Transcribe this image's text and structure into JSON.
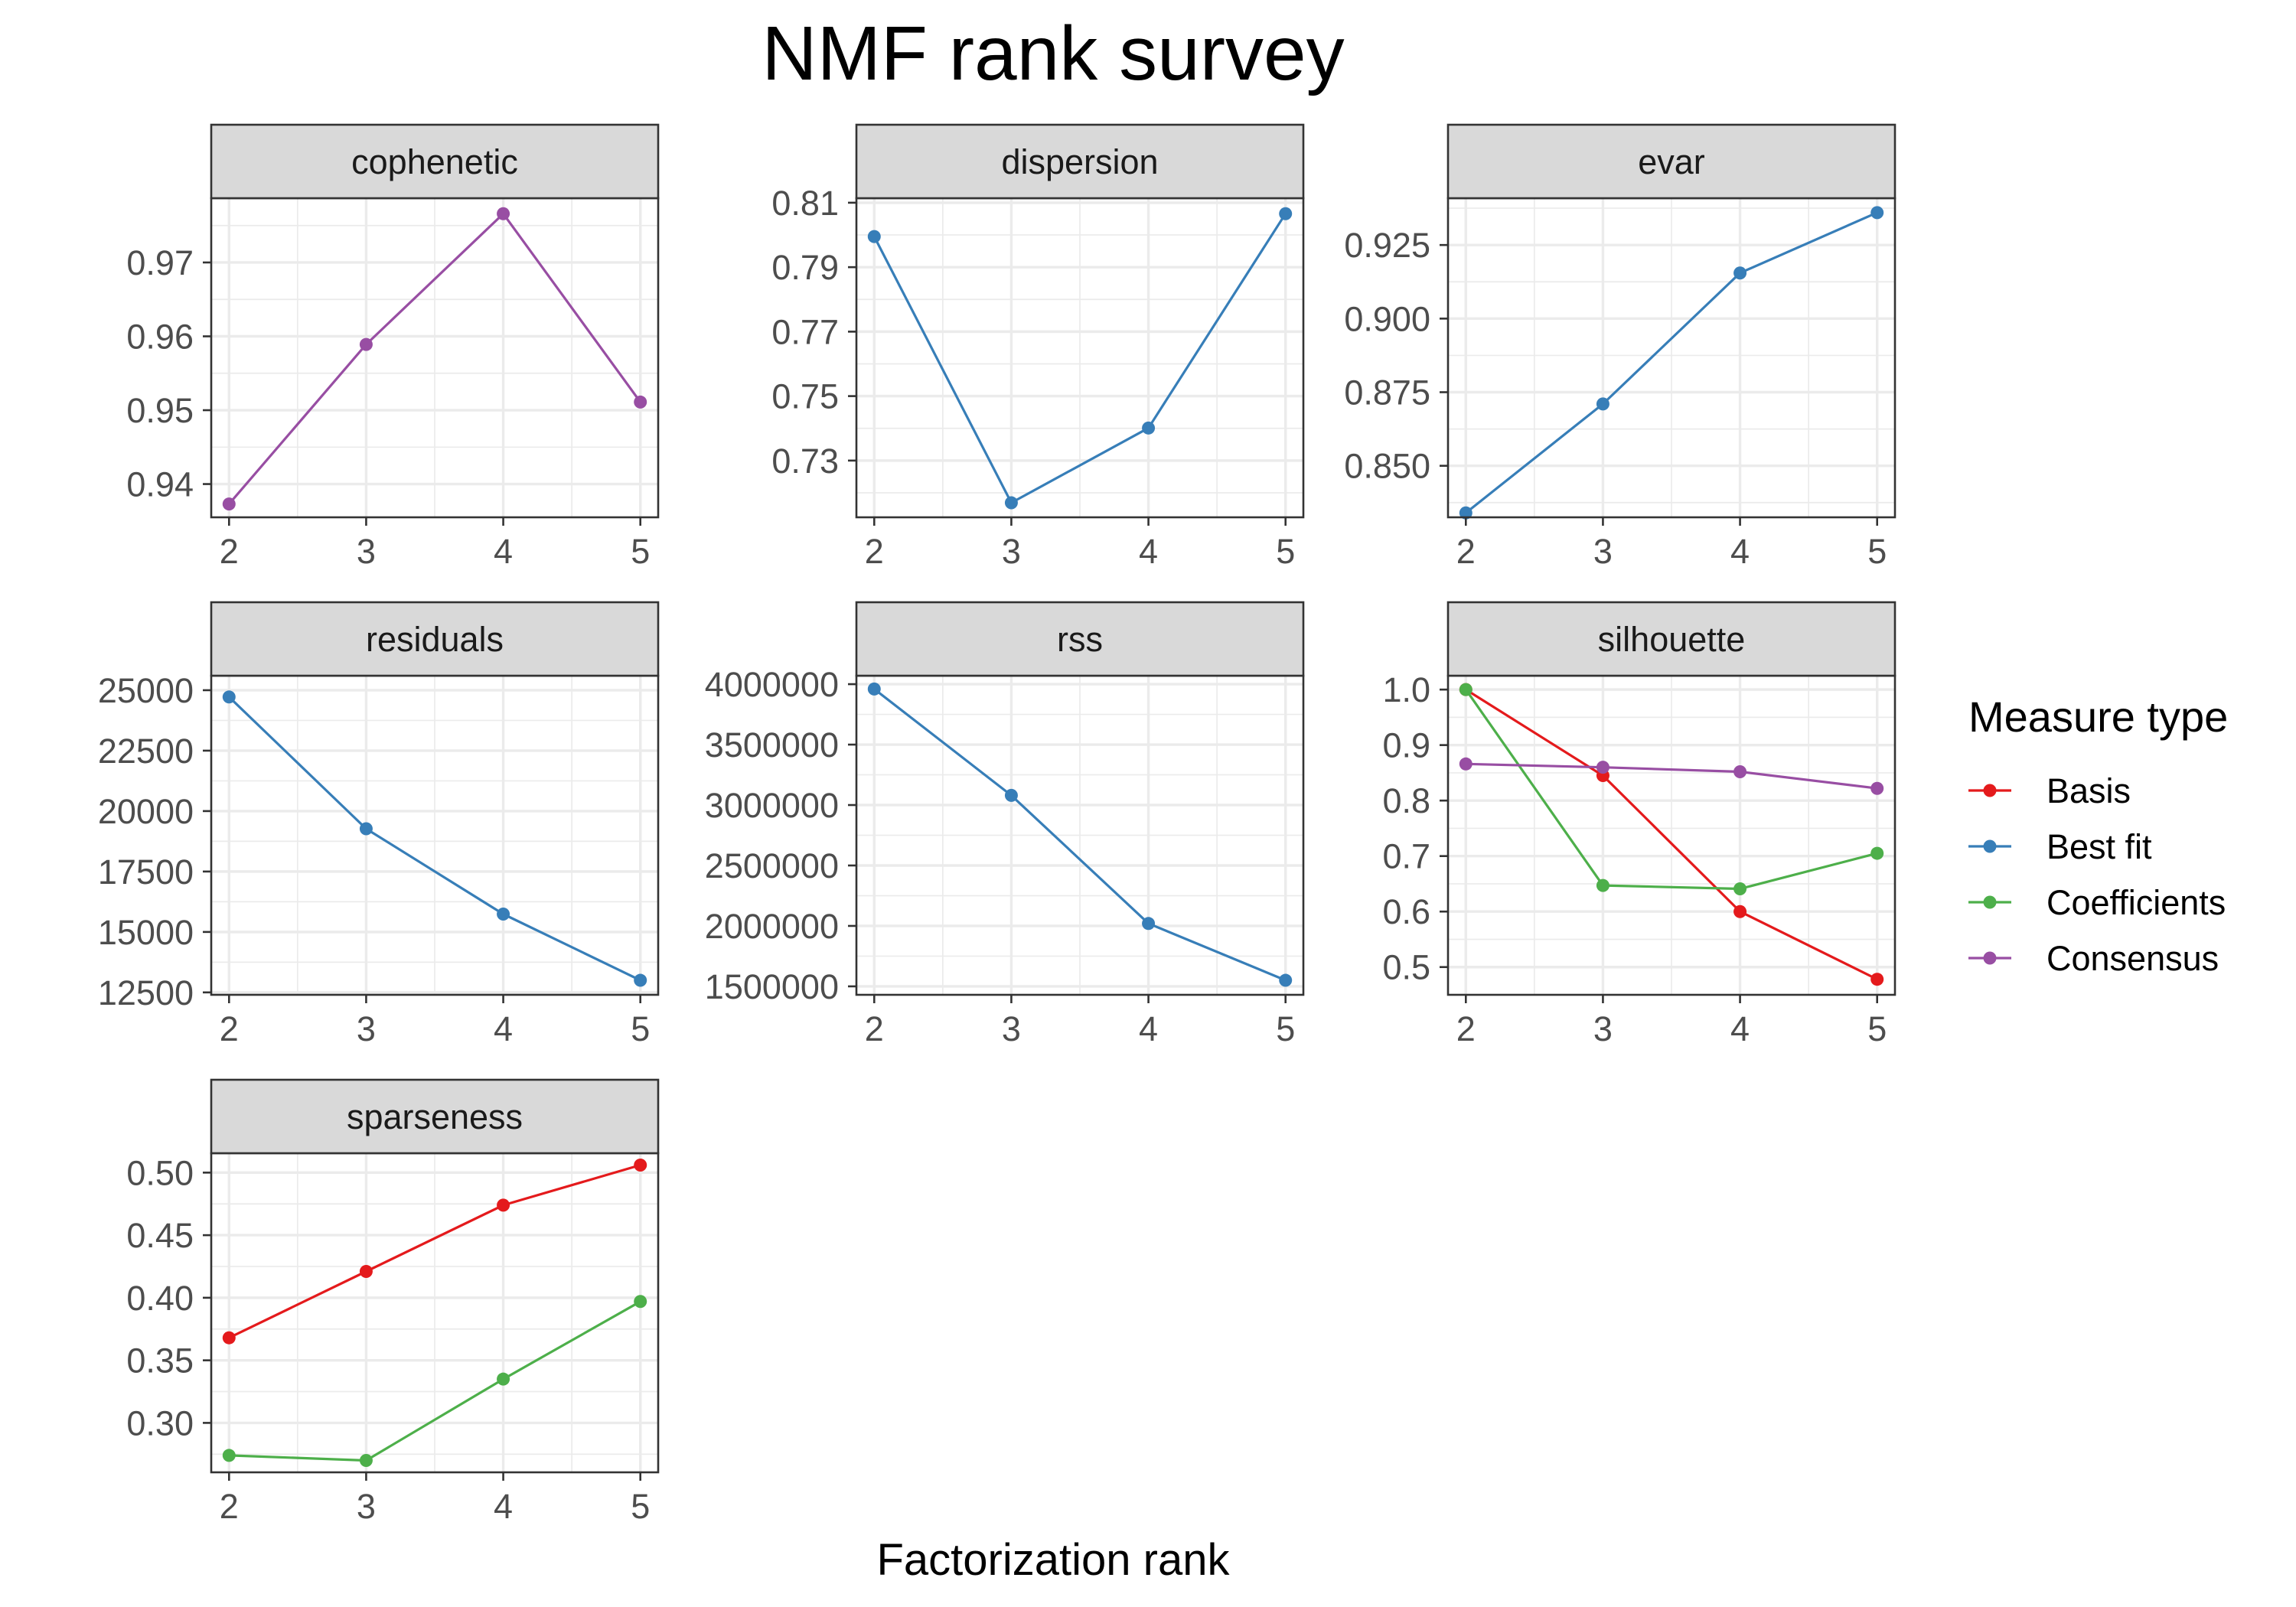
{
  "title": "NMF rank survey",
  "xlabel": "Factorization rank",
  "legend": {
    "title": "Measure type",
    "items": [
      {
        "label": "Basis",
        "color": "#e41a1c"
      },
      {
        "label": "Best fit",
        "color": "#377eb8"
      },
      {
        "label": "Coefficients",
        "color": "#4daf4a"
      },
      {
        "label": "Consensus",
        "color": "#984ea3"
      }
    ]
  },
  "chart_data": {
    "type": "line",
    "x": [
      2,
      3,
      4,
      5
    ],
    "xlim": [
      1.87,
      5.13
    ],
    "x_ticks": [
      "2",
      "3",
      "4",
      "5"
    ],
    "grid": true,
    "legend_position": "right",
    "panels": [
      {
        "name": "cophenetic",
        "ylim": [
          0.9355,
          0.9787
        ],
        "y_ticks": [
          0.94,
          0.95,
          0.96,
          0.97
        ],
        "y_tick_labels": [
          "0.94",
          "0.95",
          "0.96",
          "0.97"
        ],
        "series": [
          {
            "name": "Consensus",
            "color": "#984ea3",
            "values": [
              0.9373,
              0.9589,
              0.9766,
              0.9511
            ]
          }
        ]
      },
      {
        "name": "dispersion",
        "ylim": [
          0.7124,
          0.8114
        ],
        "y_ticks": [
          0.73,
          0.75,
          0.77,
          0.79,
          0.81
        ],
        "y_tick_labels": [
          "0.73",
          "0.75",
          "0.77",
          "0.79",
          "0.81"
        ],
        "series": [
          {
            "name": "Best fit",
            "color": "#377eb8",
            "values": [
              0.7995,
              0.7169,
              0.7401,
              0.8066
            ]
          }
        ]
      },
      {
        "name": "evar",
        "ylim": [
          0.8325,
          0.9409
        ],
        "y_ticks": [
          0.85,
          0.875,
          0.9,
          0.925
        ],
        "y_tick_labels": [
          "0.850",
          "0.875",
          "0.900",
          "0.925"
        ],
        "series": [
          {
            "name": "Best fit",
            "color": "#377eb8",
            "values": [
              0.834,
              0.871,
              0.9155,
              0.936
            ]
          }
        ]
      },
      {
        "name": "residuals",
        "ylim": [
          12400,
          25600
        ],
        "y_ticks": [
          12500,
          15000,
          17500,
          20000,
          22500,
          25000
        ],
        "y_tick_labels": [
          "12500",
          "15000",
          "17500",
          "20000",
          "22500",
          "25000"
        ],
        "series": [
          {
            "name": "Best fit",
            "color": "#377eb8",
            "values": [
              24720,
              19270,
              15740,
              13000
            ]
          }
        ]
      },
      {
        "name": "rss",
        "ylim": [
          1430000,
          4070000
        ],
        "y_ticks": [
          1500000,
          2000000,
          2500000,
          3000000,
          3500000,
          4000000
        ],
        "y_tick_labels": [
          "1500000",
          "2000000",
          "2500000",
          "3000000",
          "3500000",
          "4000000"
        ],
        "series": [
          {
            "name": "Best fit",
            "color": "#377eb8",
            "values": [
              3960000,
              3080000,
              2020000,
              1550000
            ]
          }
        ]
      },
      {
        "name": "silhouette",
        "ylim": [
          0.45,
          1.025
        ],
        "y_ticks": [
          0.5,
          0.6,
          0.7,
          0.8,
          0.9,
          1.0
        ],
        "y_tick_labels": [
          "0.5",
          "0.6",
          "0.7",
          "0.8",
          "0.9",
          "1.0"
        ],
        "series": [
          {
            "name": "Basis",
            "color": "#e41a1c",
            "values": [
              1.0,
              0.845,
              0.6,
              0.478
            ]
          },
          {
            "name": "Coefficients",
            "color": "#4daf4a",
            "values": [
              1.0,
              0.647,
              0.641,
              0.705
            ]
          },
          {
            "name": "Consensus",
            "color": "#984ea3",
            "values": [
              0.866,
              0.86,
              0.852,
              0.822
            ]
          }
        ]
      },
      {
        "name": "sparseness",
        "ylim": [
          0.2605,
          0.5155
        ],
        "y_ticks": [
          0.3,
          0.35,
          0.4,
          0.45,
          0.5
        ],
        "y_tick_labels": [
          "0.30",
          "0.35",
          "0.40",
          "0.45",
          "0.50"
        ],
        "series": [
          {
            "name": "Basis",
            "color": "#e41a1c",
            "values": [
              0.368,
              0.421,
              0.474,
              0.506
            ]
          },
          {
            "name": "Coefficients",
            "color": "#4daf4a",
            "values": [
              0.274,
              0.27,
              0.335,
              0.397
            ]
          }
        ]
      }
    ]
  }
}
